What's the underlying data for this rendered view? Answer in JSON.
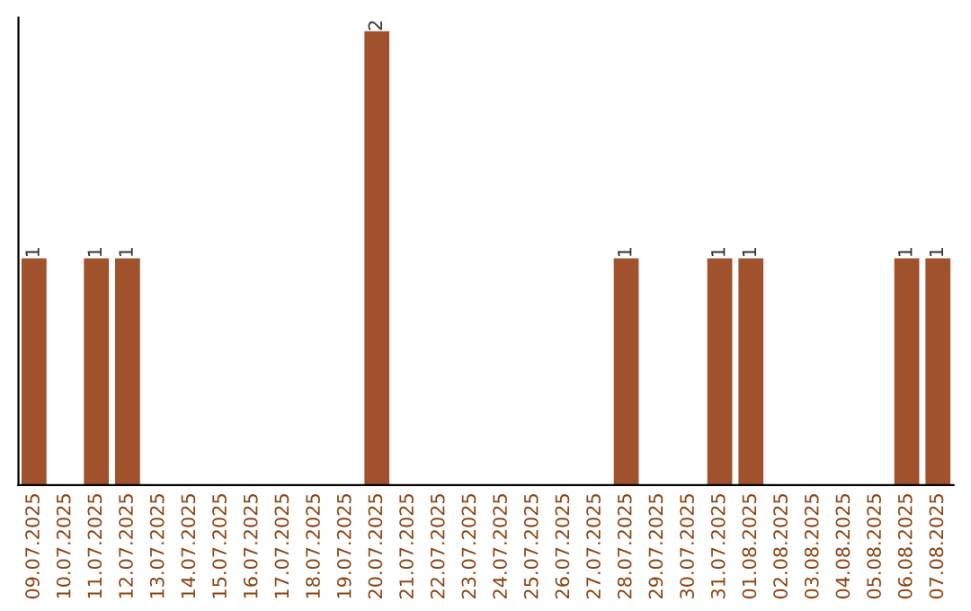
{
  "chart_data": {
    "type": "bar",
    "categories": [
      "09.07.2025",
      "10.07.2025",
      "11.07.2025",
      "12.07.2025",
      "13.07.2025",
      "14.07.2025",
      "15.07.2025",
      "16.07.2025",
      "17.07.2025",
      "18.07.2025",
      "19.07.2025",
      "20.07.2025",
      "21.07.2025",
      "22.07.2025",
      "23.07.2025",
      "24.07.2025",
      "25.07.2025",
      "26.07.2025",
      "27.07.2025",
      "28.07.2025",
      "29.07.2025",
      "30.07.2025",
      "31.07.2025",
      "01.08.2025",
      "02.08.2025",
      "03.08.2025",
      "04.08.2025",
      "05.08.2025",
      "06.08.2025",
      "07.08.2025"
    ],
    "values": [
      1,
      0,
      1,
      1,
      0,
      0,
      0,
      0,
      0,
      0,
      0,
      2,
      0,
      0,
      0,
      0,
      0,
      0,
      0,
      1,
      0,
      0,
      1,
      1,
      0,
      0,
      0,
      0,
      1,
      1
    ],
    "value_labels": [
      "1",
      null,
      "1",
      "1",
      null,
      null,
      null,
      null,
      null,
      null,
      null,
      "2",
      null,
      null,
      null,
      null,
      null,
      null,
      null,
      "1",
      null,
      null,
      "1",
      "1",
      null,
      null,
      null,
      null,
      "1",
      "1"
    ],
    "color": "#a0522d",
    "tick_labels": "x",
    "grid": false,
    "legend": false
  }
}
